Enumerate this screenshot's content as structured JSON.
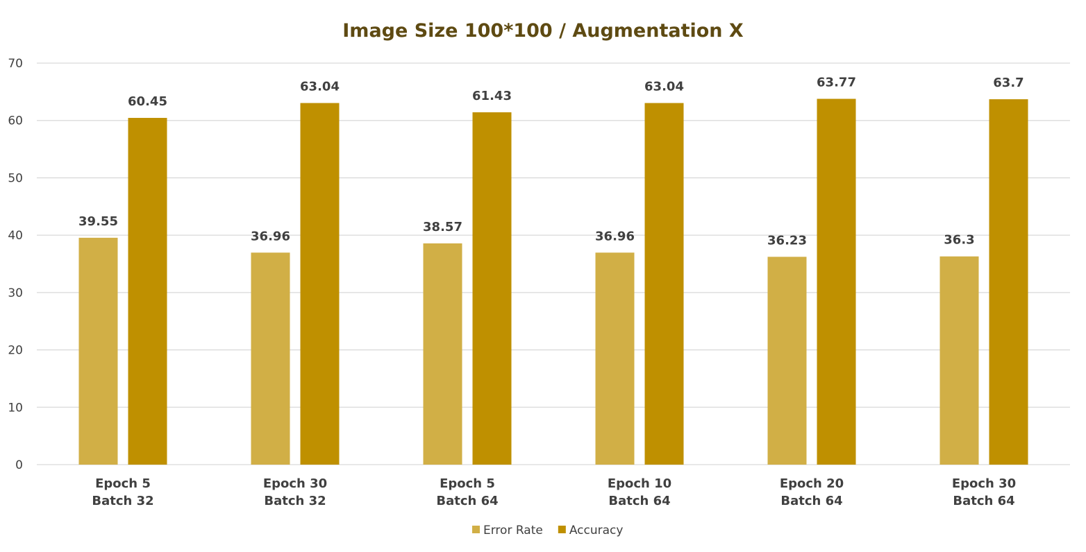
{
  "chart_data": {
    "type": "bar",
    "title": "Image Size 100*100 / Augmentation X",
    "xlabel": "",
    "ylabel": "",
    "ylim": [
      0,
      70
    ],
    "yticks": [
      "0",
      "10",
      "20",
      "30",
      "40",
      "50",
      "60",
      "70"
    ],
    "grid": true,
    "legend_position": "bottom",
    "categories": [
      [
        "Epoch 5",
        "Batch 32"
      ],
      [
        "Epoch 30",
        "Batch 32"
      ],
      [
        "Epoch 5",
        "Batch 64"
      ],
      [
        "Epoch 10",
        "Batch 64"
      ],
      [
        "Epoch 20",
        "Batch 64"
      ],
      [
        "Epoch 30",
        "Batch 64"
      ]
    ],
    "series": [
      {
        "name": "Error Rate",
        "color": "#d1af46",
        "values": [
          39.55,
          36.96,
          38.57,
          36.96,
          36.23,
          36.3
        ],
        "labels": [
          "39.55",
          "36.96",
          "38.57",
          "36.96",
          "36.23",
          "36.3"
        ]
      },
      {
        "name": "Accuracy",
        "color": "#bf9000",
        "values": [
          60.45,
          63.04,
          61.43,
          63.04,
          63.77,
          63.7
        ],
        "labels": [
          "60.45",
          "63.04",
          "61.43",
          "63.04",
          "63.77",
          "63.7"
        ]
      }
    ],
    "colors": {
      "title": "#5e4a12",
      "text": "#404040",
      "grid": "#d9d9d9"
    }
  }
}
